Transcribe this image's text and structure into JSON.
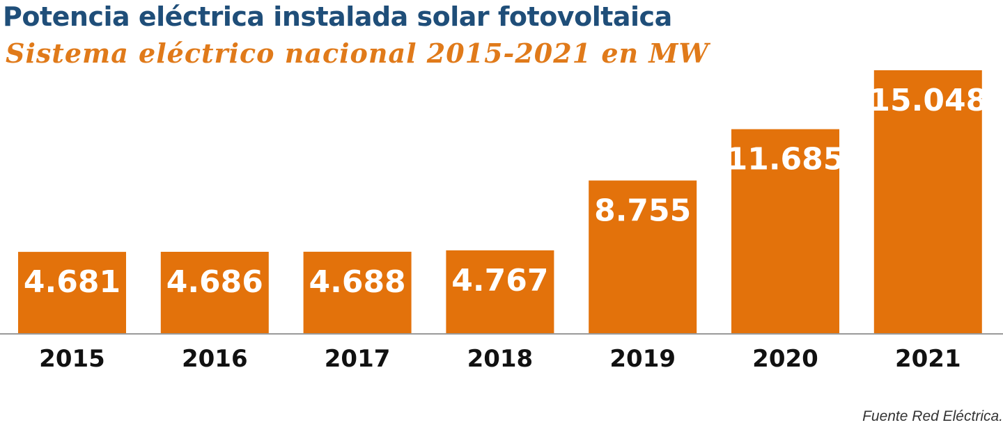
{
  "header": {
    "title": "Potencia eléctrica instalada solar fotovoltaica",
    "subtitle": "Sistema eléctrico nacional 2015-2021 en MW"
  },
  "footer": {
    "source": "Fuente Red Eléctrica."
  },
  "chart_data": {
    "type": "bar",
    "title": "Potencia eléctrica instalada solar fotovoltaica",
    "subtitle": "Sistema eléctrico nacional 2015-2021 en MW",
    "categories": [
      "2015",
      "2016",
      "2017",
      "2018",
      "2019",
      "2020",
      "2021"
    ],
    "values": [
      4681,
      4686,
      4688,
      4767,
      8755,
      11685,
      15048
    ],
    "value_labels": [
      "4.681",
      "4.686",
      "4.688",
      "4.767",
      "8.755",
      "11.685",
      "15.048"
    ],
    "xlabel": "",
    "ylabel": "",
    "ylim": [
      0,
      15048
    ],
    "grid": false,
    "legend": "none",
    "colors": {
      "bar": "#e3720b",
      "axis": "#9a9a9a",
      "title": "#1f4e79",
      "subtitle": "#e07a1a"
    }
  }
}
